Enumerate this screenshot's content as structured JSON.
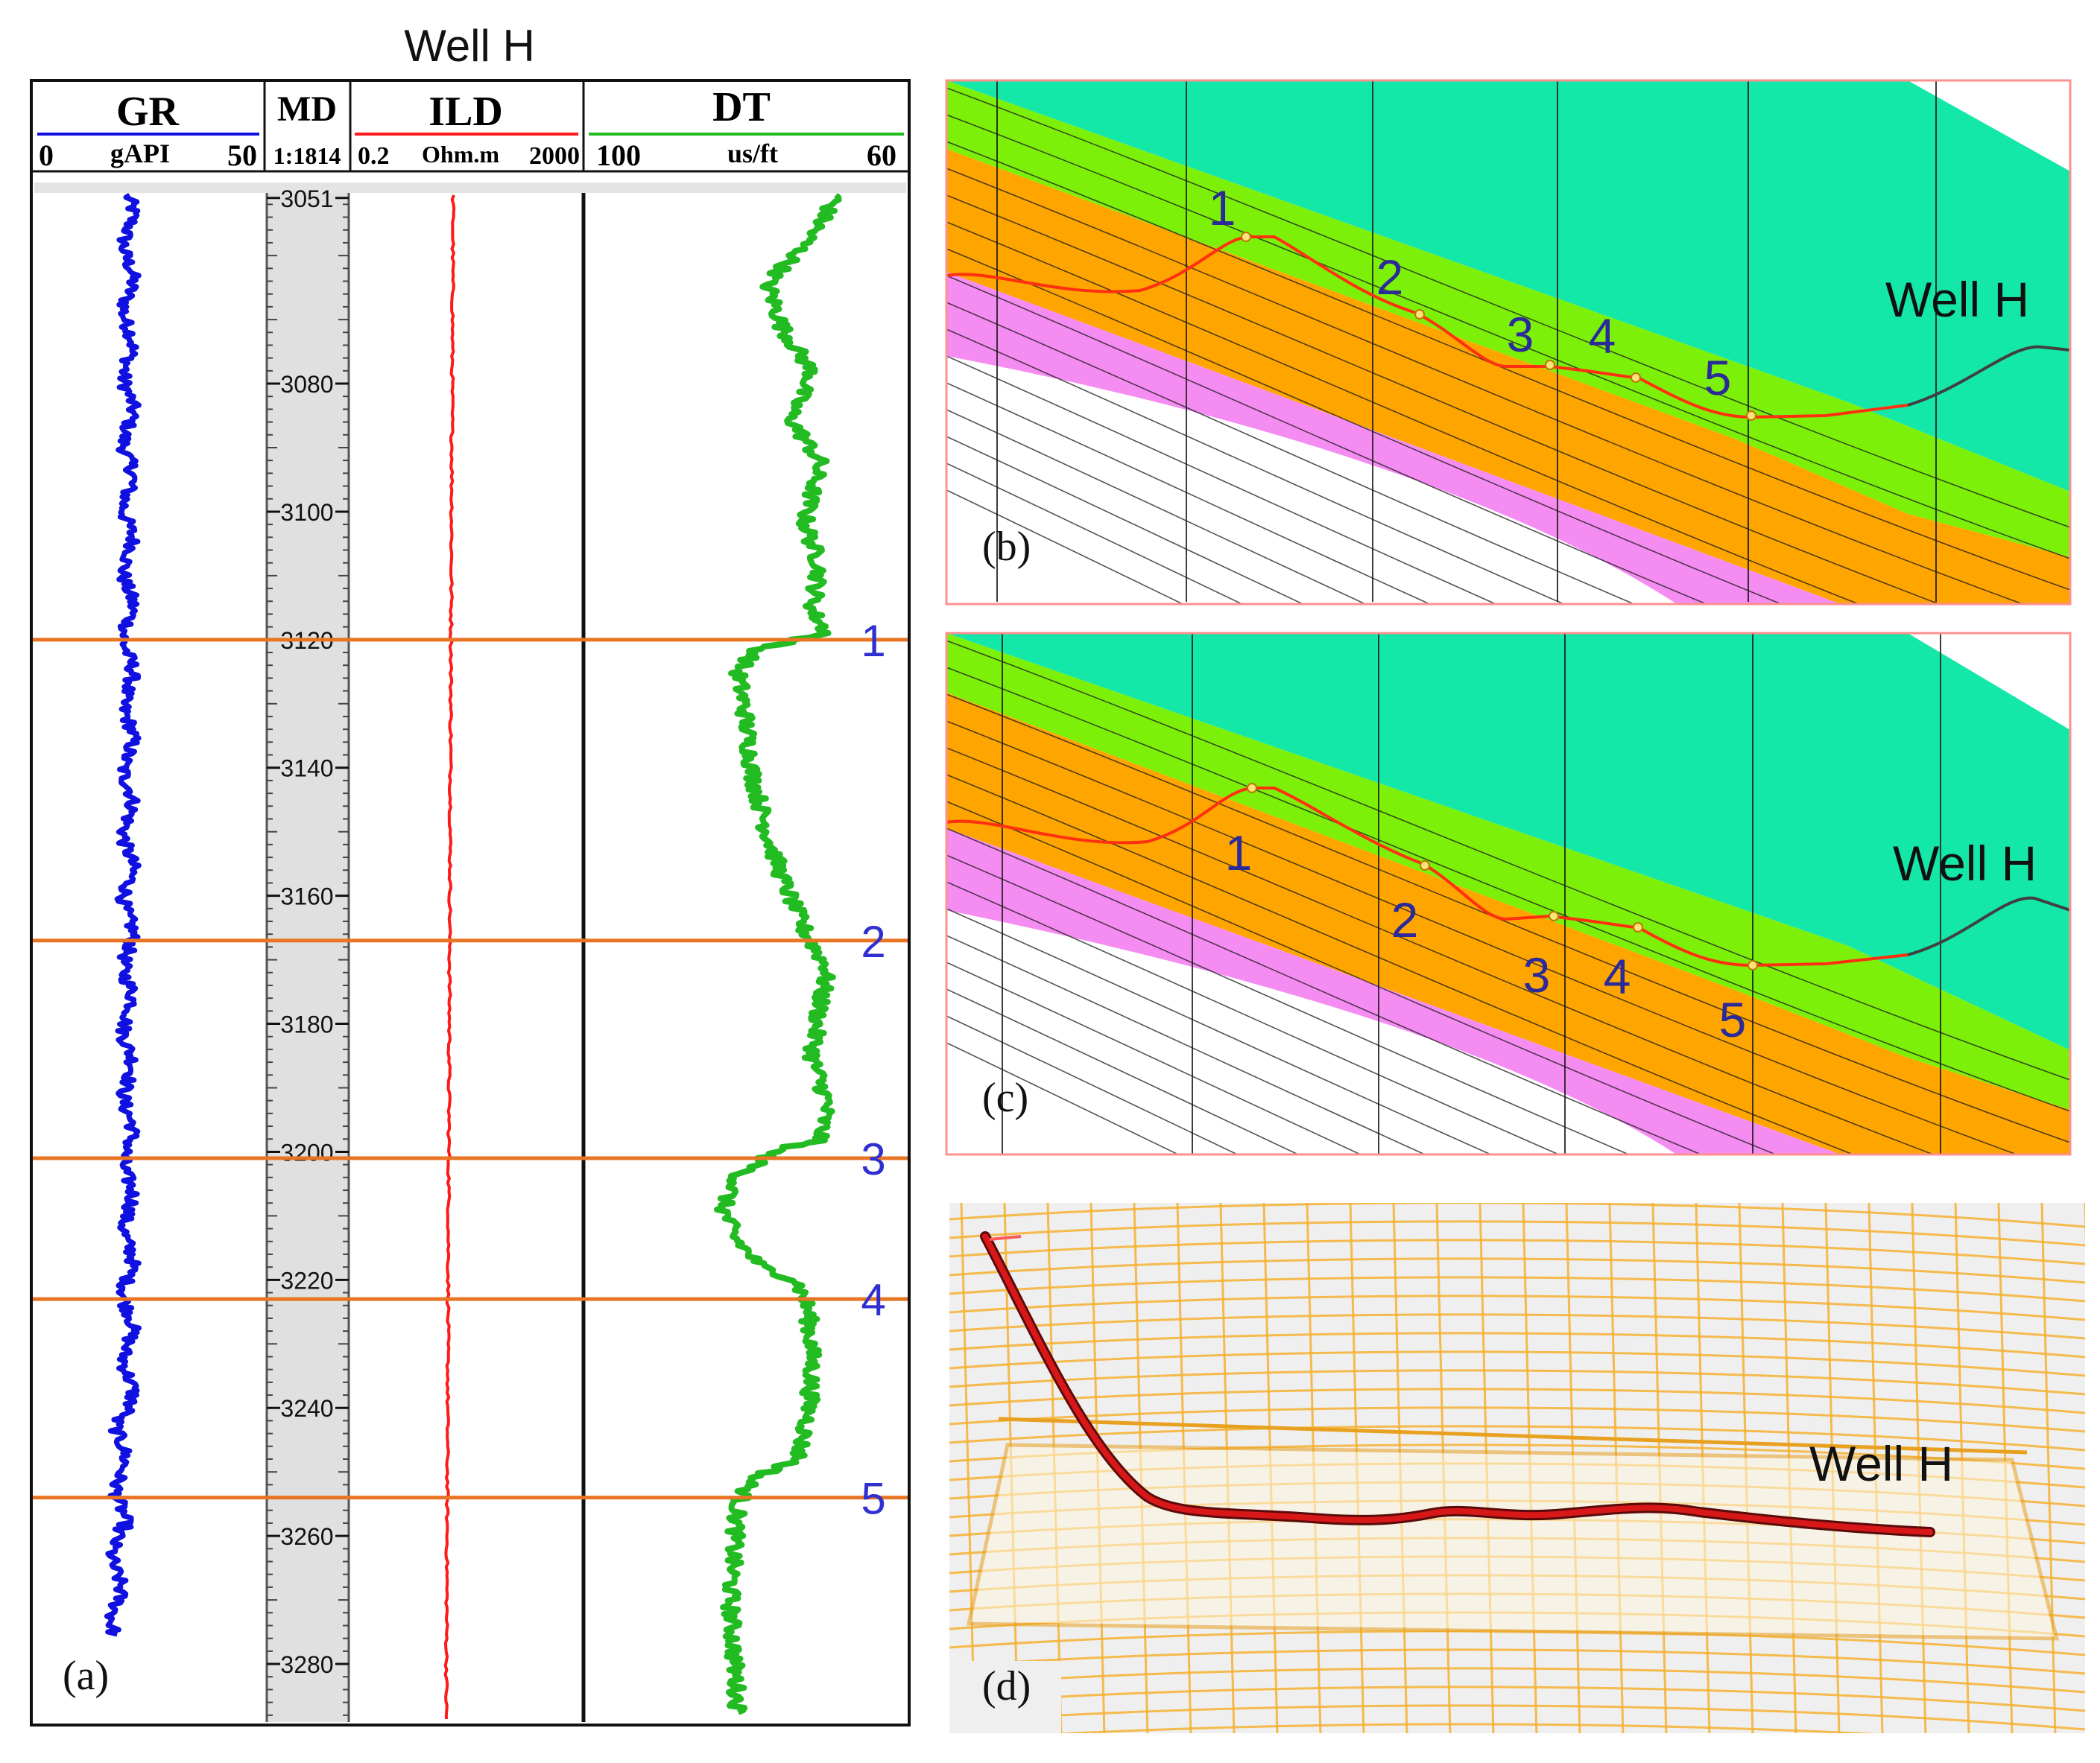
{
  "figure_title": "Well H",
  "panel_a": {
    "label": "(a)",
    "tracks": {
      "gr": {
        "name": "GR",
        "unit": "gAPI",
        "min": "0",
        "max": "50",
        "color": "#1010e0"
      },
      "md": {
        "name": "MD",
        "scale": "1:1814"
      },
      "ild": {
        "name": "ILD",
        "unit": "Ohm.m",
        "min": "0.2",
        "max": "2000",
        "color": "#ff1a1a"
      },
      "dt": {
        "name": "DT",
        "unit": "us/ft",
        "min": "100",
        "max": "60",
        "color": "#22bb22"
      }
    },
    "depth_range": [
      3048,
      3290
    ],
    "depth_ticks": [
      "3051",
      "3080",
      "3100",
      "3120",
      "3140",
      "3160",
      "3180",
      "3200",
      "3220",
      "3240",
      "3260",
      "3280"
    ],
    "markers": [
      {
        "id": "1",
        "depth": 3120
      },
      {
        "id": "2",
        "depth": 3167
      },
      {
        "id": "3",
        "depth": 3201
      },
      {
        "id": "4",
        "depth": 3223
      },
      {
        "id": "5",
        "depth": 3254
      }
    ],
    "marker_color": "#e87524"
  },
  "panel_b": {
    "label": "(b)",
    "well_label": "Well H",
    "points": [
      "1",
      "2",
      "3",
      "4",
      "5"
    ]
  },
  "panel_c": {
    "label": "(c)",
    "well_label": "Well H",
    "points": [
      "1",
      "2",
      "3",
      "4",
      "5"
    ]
  },
  "panel_d": {
    "label": "(d)",
    "well_label": "Well H"
  },
  "layer_colors": {
    "top": "#14e8a8",
    "upper": "#7df00a",
    "reservoir": "#ffa500",
    "base": "#f58cf2",
    "grid": "#1a1a1a",
    "trajectory": "#ff3010",
    "well_outside": "#404040",
    "grid_3d": "#f5b030",
    "frame": "#ff9090"
  }
}
